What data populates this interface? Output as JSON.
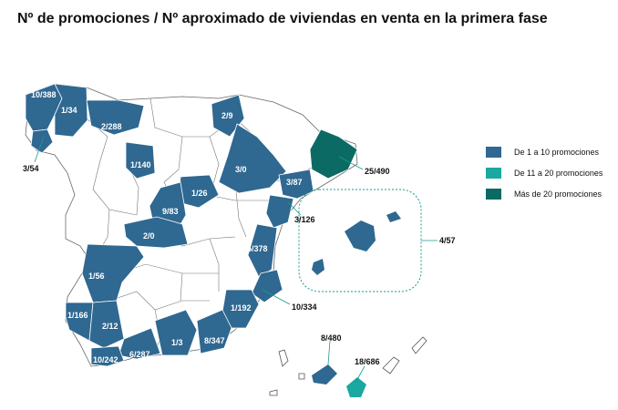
{
  "title": "Nº de promociones / Nº aproximado de viviendas en venta en la primera fase",
  "colors": {
    "low": "#2f6891",
    "mid": "#1aa8a0",
    "high": "#0b6a63",
    "none": "#ffffff",
    "border": "#666666"
  },
  "legend": [
    {
      "label": "De 1 a 10 promociones",
      "color_key": "low"
    },
    {
      "label": "De 11 a 20 promociones",
      "color_key": "mid"
    },
    {
      "label": "Más de 20 promociones",
      "color_key": "high"
    }
  ],
  "regions": [
    {
      "label": "10/388",
      "level": "low"
    },
    {
      "label": "1/34",
      "level": "low"
    },
    {
      "label": "3/54",
      "level": "low"
    },
    {
      "label": "2/288",
      "level": "low"
    },
    {
      "label": "2/9",
      "level": "low"
    },
    {
      "label": "1/140",
      "level": "low"
    },
    {
      "label": "3/0",
      "level": "low"
    },
    {
      "label": "25/490",
      "level": "high"
    },
    {
      "label": "3/87",
      "level": "low"
    },
    {
      "label": "1/26",
      "level": "low"
    },
    {
      "label": "9/83",
      "level": "low"
    },
    {
      "label": "3/126",
      "level": "low"
    },
    {
      "label": "4/57",
      "level": "low"
    },
    {
      "label": "2/0",
      "level": "low"
    },
    {
      "label": "5/378",
      "level": "low"
    },
    {
      "label": "1/56",
      "level": "low"
    },
    {
      "label": "10/334",
      "level": "low"
    },
    {
      "label": "1/192",
      "level": "low"
    },
    {
      "label": "1/166",
      "level": "low"
    },
    {
      "label": "2/12",
      "level": "low"
    },
    {
      "label": "8/480",
      "level": "low"
    },
    {
      "label": "6/287",
      "level": "low"
    },
    {
      "label": "1/3",
      "level": "low"
    },
    {
      "label": "8/347",
      "level": "low"
    },
    {
      "label": "18/686",
      "level": "mid"
    },
    {
      "label": "10/242",
      "level": "low"
    }
  ]
}
